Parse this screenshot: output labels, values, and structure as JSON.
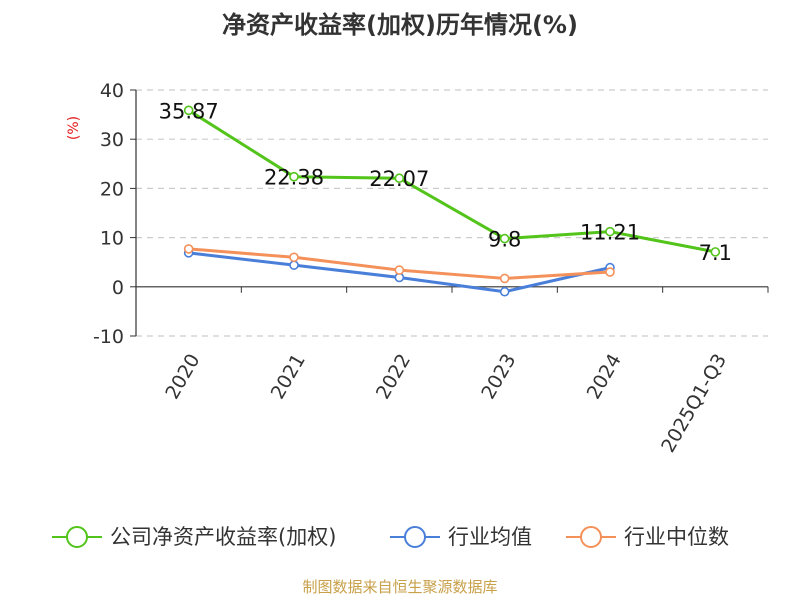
{
  "chart_data": {
    "type": "line",
    "title": "净资产收益率(加权)历年情况(%)",
    "ylabel": "(%)",
    "categories": [
      "2020",
      "2021",
      "2022",
      "2023",
      "2024",
      "2025Q1-Q3"
    ],
    "ylim": [
      -10,
      40
    ],
    "yticks": [
      40,
      30,
      20,
      10,
      0,
      -10
    ],
    "grid": true,
    "legend_position": "bottom",
    "series": [
      {
        "name": "公司净资产收益率(加权)",
        "color": "#52c41a",
        "values": [
          35.87,
          22.38,
          22.07,
          9.8,
          11.21,
          7.1
        ],
        "labels": [
          "35.87",
          "22.38",
          "22.07",
          "9.8",
          "11.21",
          "7.1"
        ]
      },
      {
        "name": "行业均值",
        "color": "#4a7fd9",
        "values": [
          6.9,
          4.4,
          1.9,
          -1.0,
          3.9,
          null
        ]
      },
      {
        "name": "行业中位数",
        "color": "#f4915a",
        "values": [
          7.7,
          6.0,
          3.4,
          1.7,
          3.0,
          null
        ]
      }
    ]
  },
  "source": "制图数据来自恒生聚源数据库"
}
